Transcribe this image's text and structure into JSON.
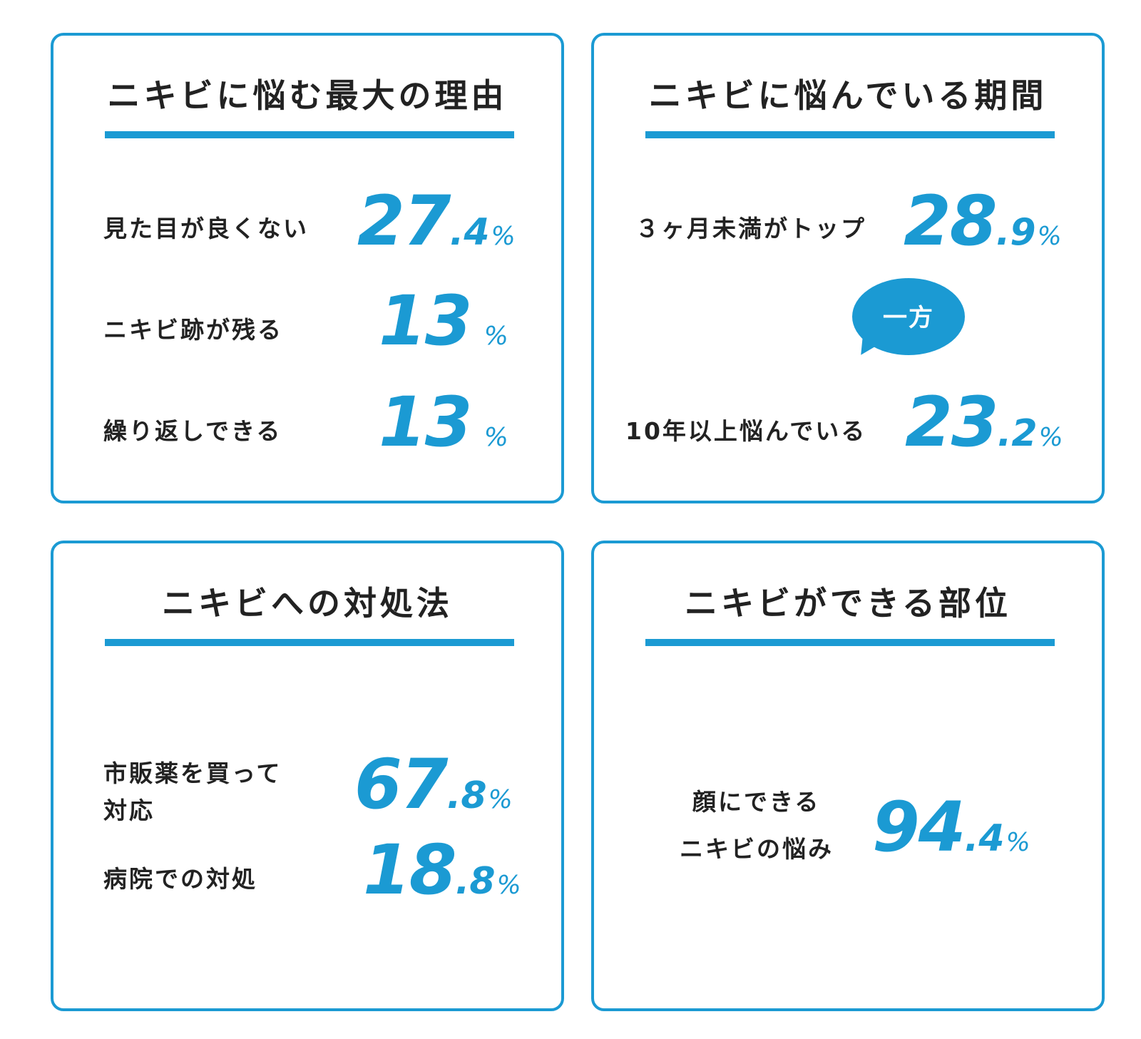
{
  "colors": {
    "accent": "#1b9ad3",
    "text": "#222222",
    "background": "#ffffff"
  },
  "cards": [
    {
      "title": "ニキビに悩む最大の理由",
      "stats": [
        {
          "label": "見た目が良くない",
          "int": "27",
          "dec": ".4",
          "pct": "%"
        },
        {
          "label": "ニキビ跡が残る",
          "int": "13",
          "dec": "",
          "pct": "%"
        },
        {
          "label": "繰り返しできる",
          "int": "13",
          "dec": "",
          "pct": "%"
        }
      ]
    },
    {
      "title": "ニキビに悩んでいる期間",
      "stats": [
        {
          "label": "３ヶ月未満がトップ",
          "int": "28",
          "dec": ".9",
          "pct": "%"
        },
        {
          "label": "10年以上悩んでいる",
          "int": "23",
          "dec": ".2",
          "pct": "%"
        }
      ],
      "bubble": "一方"
    },
    {
      "title": "ニキビへの対処法",
      "stats": [
        {
          "label_line1": "市販薬を買って",
          "label_line2": "対応",
          "int": "67",
          "dec": ".8",
          "pct": "%"
        },
        {
          "label": "病院での対処",
          "int": "18",
          "dec": ".8",
          "pct": "%"
        }
      ]
    },
    {
      "title": "ニキビができる部位",
      "stats": [
        {
          "label_line1": "顔にできる",
          "label_line2": "ニキビの悩み",
          "int": "94",
          "dec": ".4",
          "pct": "%"
        }
      ]
    }
  ]
}
